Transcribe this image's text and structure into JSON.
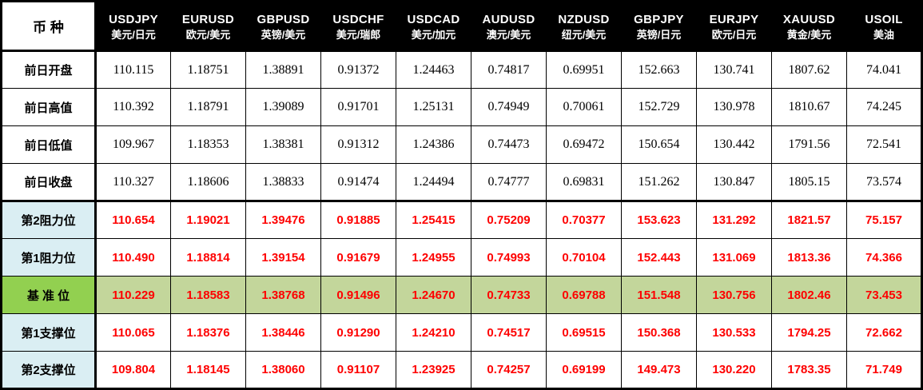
{
  "colors": {
    "header_bg": "#000000",
    "header_text": "#ffffff",
    "value_red": "#fe0000",
    "label_blue": "#daeef3",
    "pivot_label_green": "#92d050",
    "pivot_row_green": "#c3d69b",
    "border": "#000000"
  },
  "table": {
    "corner_label": "币 种",
    "columns": [
      {
        "symbol": "USDJPY",
        "name_cn": "美元/日元"
      },
      {
        "symbol": "EURUSD",
        "name_cn": "欧元/美元"
      },
      {
        "symbol": "GBPUSD",
        "name_cn": "英镑/美元"
      },
      {
        "symbol": "USDCHF",
        "name_cn": "美元/瑞郎"
      },
      {
        "symbol": "USDCAD",
        "name_cn": "美元/加元"
      },
      {
        "symbol": "AUDUSD",
        "name_cn": "澳元/美元"
      },
      {
        "symbol": "NZDUSD",
        "name_cn": "纽元/美元"
      },
      {
        "symbol": "GBPJPY",
        "name_cn": "英镑/日元"
      },
      {
        "symbol": "EURJPY",
        "name_cn": "欧元/日元"
      },
      {
        "symbol": "XAUUSD",
        "name_cn": "黄金/美元"
      },
      {
        "symbol": "USOIL",
        "name_cn": "美油"
      }
    ],
    "rows": [
      {
        "label": "前日开盘",
        "type": "prev",
        "section_end": false,
        "values": [
          "110.115",
          "1.18751",
          "1.38891",
          "0.91372",
          "1.24463",
          "0.74817",
          "0.69951",
          "152.663",
          "130.741",
          "1807.62",
          "74.041"
        ]
      },
      {
        "label": "前日高值",
        "type": "prev",
        "section_end": false,
        "values": [
          "110.392",
          "1.18791",
          "1.39089",
          "0.91701",
          "1.25131",
          "0.74949",
          "0.70061",
          "152.729",
          "130.978",
          "1810.67",
          "74.245"
        ]
      },
      {
        "label": "前日低值",
        "type": "prev",
        "section_end": false,
        "values": [
          "109.967",
          "1.18353",
          "1.38381",
          "0.91312",
          "1.24386",
          "0.74473",
          "0.69472",
          "150.654",
          "130.442",
          "1791.56",
          "72.541"
        ]
      },
      {
        "label": "前日收盘",
        "type": "prev",
        "section_end": true,
        "values": [
          "110.327",
          "1.18606",
          "1.38833",
          "0.91474",
          "1.24494",
          "0.74777",
          "0.69831",
          "151.262",
          "130.847",
          "1805.15",
          "73.574"
        ]
      },
      {
        "label": "第2阻力位",
        "type": "resistance",
        "section_end": false,
        "values": [
          "110.654",
          "1.19021",
          "1.39476",
          "0.91885",
          "1.25415",
          "0.75209",
          "0.70377",
          "153.623",
          "131.292",
          "1821.57",
          "75.157"
        ]
      },
      {
        "label": "第1阻力位",
        "type": "resistance",
        "section_end": false,
        "values": [
          "110.490",
          "1.18814",
          "1.39154",
          "0.91679",
          "1.24955",
          "0.74993",
          "0.70104",
          "152.443",
          "131.069",
          "1813.36",
          "74.366"
        ]
      },
      {
        "label": "基 准 位",
        "type": "pivot",
        "section_end": false,
        "values": [
          "110.229",
          "1.18583",
          "1.38768",
          "0.91496",
          "1.24670",
          "0.74733",
          "0.69788",
          "151.548",
          "130.756",
          "1802.46",
          "73.453"
        ]
      },
      {
        "label": "第1支撑位",
        "type": "support",
        "section_end": false,
        "values": [
          "110.065",
          "1.18376",
          "1.38446",
          "0.91290",
          "1.24210",
          "0.74517",
          "0.69515",
          "150.368",
          "130.533",
          "1794.25",
          "72.662"
        ]
      },
      {
        "label": "第2支撑位",
        "type": "support",
        "section_end": false,
        "values": [
          "109.804",
          "1.18145",
          "1.38060",
          "0.91107",
          "1.23925",
          "0.74257",
          "0.69199",
          "149.473",
          "130.220",
          "1783.35",
          "71.749"
        ]
      }
    ]
  }
}
